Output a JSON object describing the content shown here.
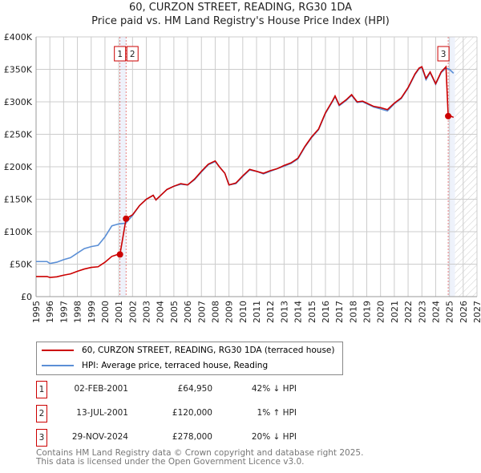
{
  "chart_data": {
    "type": "line",
    "title": "60, CURZON STREET, READING, RG30 1DA",
    "subtitle": "Price paid vs. HM Land Registry's House Price Index (HPI)",
    "xlim": [
      1995,
      2027
    ],
    "ylim": [
      0,
      400000
    ],
    "x_ticks": [
      "1995",
      "1996",
      "1997",
      "1998",
      "1999",
      "2000",
      "2001",
      "2002",
      "2003",
      "2004",
      "2005",
      "2006",
      "2007",
      "2008",
      "2009",
      "2010",
      "2011",
      "2012",
      "2013",
      "2014",
      "2015",
      "2016",
      "2017",
      "2018",
      "2019",
      "2020",
      "2021",
      "2022",
      "2023",
      "2024",
      "2025",
      "2026",
      "2027"
    ],
    "y_ticks": [
      {
        "v": 0,
        "label": "£0"
      },
      {
        "v": 50000,
        "label": "£50K"
      },
      {
        "v": 100000,
        "label": "£100K"
      },
      {
        "v": 150000,
        "label": "£150K"
      },
      {
        "v": 200000,
        "label": "£200K"
      },
      {
        "v": 250000,
        "label": "£250K"
      },
      {
        "v": 300000,
        "label": "£300K"
      },
      {
        "v": 350000,
        "label": "£350K"
      },
      {
        "v": 400000,
        "label": "£400K"
      }
    ],
    "grid": true,
    "series": [
      {
        "name": "60, CURZON STREET, READING, RG30 1DA (terraced house)",
        "color": "#cc0000",
        "x": [
          1995,
          1995.8,
          1996,
          1996.5,
          1997,
          1997.5,
          1998,
          1998.5,
          1999,
          1999.5,
          2000,
          2000.5,
          2001,
          2001.09,
          2001.53,
          2002,
          2002.5,
          2003,
          2003.5,
          2003.7,
          2004,
          2004.5,
          2005,
          2005.5,
          2006,
          2006.5,
          2007,
          2007.5,
          2008,
          2008.3,
          2008.7,
          2009,
          2009.5,
          2010,
          2010.5,
          2011,
          2011.5,
          2012,
          2012.5,
          2013,
          2013.5,
          2014,
          2014.5,
          2015,
          2015.5,
          2016,
          2016.5,
          2016.7,
          2017,
          2017.5,
          2017.9,
          2018.3,
          2018.7,
          2019,
          2019.5,
          2020,
          2020.5,
          2021,
          2021.5,
          2022,
          2022.5,
          2022.8,
          2023,
          2023.3,
          2023.6,
          2024,
          2024.4,
          2024.75,
          2024.91,
          2025.1,
          2025.3
        ],
        "y": [
          31000,
          31000,
          29500,
          30500,
          33000,
          35000,
          39000,
          42500,
          45000,
          46000,
          53000,
          62000,
          65500,
          64950,
          120000,
          126000,
          140000,
          150000,
          156000,
          149000,
          155000,
          165000,
          170000,
          174000,
          172000,
          181000,
          193000,
          204000,
          209000,
          200000,
          190000,
          172000,
          175000,
          186000,
          196000,
          193000,
          190000,
          194000,
          197000,
          202000,
          206000,
          213000,
          231000,
          246000,
          258000,
          283000,
          301000,
          309000,
          295000,
          303000,
          311000,
          300000,
          301000,
          298000,
          293000,
          291000,
          288000,
          298000,
          306000,
          322000,
          343000,
          352000,
          354000,
          336000,
          346000,
          328000,
          346000,
          354000,
          278000,
          278000,
          276000
        ]
      },
      {
        "name": "HPI: Average price, terraced house, Reading",
        "color": "#5b8fd6",
        "x": [
          1995,
          1995.8,
          1996,
          1996.5,
          1997,
          1997.5,
          1998,
          1998.5,
          1999,
          1999.5,
          2000,
          2000.5,
          2001,
          2001.5,
          2002,
          2002.5,
          2003,
          2003.5,
          2003.7,
          2004,
          2004.5,
          2005,
          2005.5,
          2006,
          2006.5,
          2007,
          2007.5,
          2008,
          2008.3,
          2008.7,
          2009,
          2009.5,
          2010,
          2010.5,
          2011,
          2011.5,
          2012,
          2012.5,
          2013,
          2013.5,
          2014,
          2014.5,
          2015,
          2015.5,
          2016,
          2016.5,
          2016.7,
          2017,
          2017.5,
          2017.9,
          2018.3,
          2018.7,
          2019,
          2019.5,
          2020,
          2020.5,
          2021,
          2021.5,
          2022,
          2022.5,
          2022.8,
          2023,
          2023.3,
          2023.6,
          2024,
          2024.4,
          2024.75,
          2025,
          2025.3
        ],
        "y": [
          54000,
          54000,
          51000,
          53000,
          57000,
          60000,
          67000,
          74000,
          77000,
          79000,
          92000,
          109000,
          112000,
          113000,
          125000,
          140000,
          150000,
          156000,
          149000,
          155000,
          165000,
          170000,
          173000,
          172000,
          180000,
          192000,
          203000,
          208000,
          200000,
          190000,
          172000,
          174000,
          185000,
          195000,
          193000,
          189000,
          193000,
          197000,
          201000,
          205000,
          212000,
          230000,
          245000,
          257000,
          282000,
          300000,
          308000,
          294000,
          302000,
          310000,
          299000,
          300000,
          297000,
          292000,
          289000,
          286000,
          297000,
          305000,
          321000,
          342000,
          351000,
          353000,
          334000,
          345000,
          327000,
          345000,
          352000,
          350000,
          344000
        ]
      }
    ],
    "sales": [
      {
        "id": "1",
        "date": "02-FEB-2001",
        "x": 2001.09,
        "price": "£64,950",
        "price_value": 64950,
        "hpi": "42% ↓ HPI"
      },
      {
        "id": "2",
        "date": "13-JUL-2001",
        "x": 2001.53,
        "price": "£120,000",
        "price_value": 120000,
        "hpi": "1% ↑ HPI"
      },
      {
        "id": "3",
        "date": "29-NOV-2024",
        "x": 2024.91,
        "price": "£278,000",
        "price_value": 278000,
        "hpi": "20% ↓ HPI"
      }
    ],
    "forecast_hatch_from": 2025.4,
    "legend_placement": "below"
  },
  "footer": [
    "Contains HM Land Registry data © Crown copyright and database right 2025.",
    "This data is licensed under the Open Government Licence v3.0."
  ]
}
